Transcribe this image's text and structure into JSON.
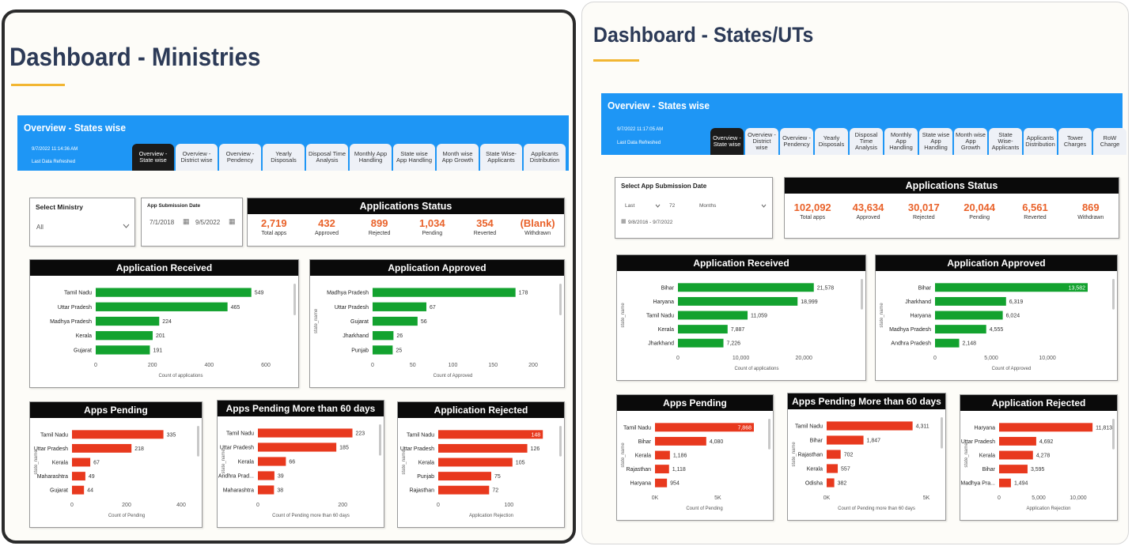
{
  "colors": {
    "green": "#13a22f",
    "red": "#e8391e",
    "banner": "#1e96f5",
    "title": "#2c3a57",
    "accent": "#f2b632",
    "stat": "#e9622a"
  },
  "ministries": {
    "title": "Dashboard - Ministries",
    "banner_title": "Overview - States wise",
    "refresh_time": "9/7/2022 11:14:36 AM",
    "refresh_label": "Last Data Refreshed",
    "tabs": [
      "Overview - State wise",
      "Overview - District wise",
      "Overview - Pendency",
      "Yearly Disposals",
      "Disposal Time Analysis",
      "Monthly App Handling",
      "State wise App Handling",
      "Month wise App Growth",
      "State Wise- Applicants",
      "Applicants Distribution"
    ],
    "ministry_filter": {
      "label": "Select Ministry",
      "value": "All"
    },
    "date_filter": {
      "label": "App Submission Date",
      "from": "7/1/2018",
      "to": "9/5/2022"
    },
    "status": {
      "title": "Applications Status",
      "items": [
        {
          "value": "2,719",
          "label": "Total apps"
        },
        {
          "value": "432",
          "label": "Approved"
        },
        {
          "value": "899",
          "label": "Rejected"
        },
        {
          "value": "1,034",
          "label": "Pending"
        },
        {
          "value": "354",
          "label": "Reverted"
        },
        {
          "value": "(Blank)",
          "label": "Withdrawn"
        }
      ]
    }
  },
  "states": {
    "title": "Dashboard - States/UTs",
    "banner_title": "Overview - States wise",
    "refresh_time": "9/7/2022 11:17:05 AM",
    "refresh_label": "Last Data Refreshed",
    "tabs": [
      "Overview - State wise",
      "Overview - District wise",
      "Overview - Pendency",
      "Yearly Disposals",
      "Disposal Time Analysis",
      "Monthly App Handling",
      "State wise App Handling",
      "Month wise App Growth",
      "State Wise- Applicants",
      "Applicants Distribution",
      "Tower Charges",
      "RoW Charge"
    ],
    "date_filter": {
      "label": "Select App Submission Date",
      "mode": "Last",
      "count": "72",
      "unit": "Months",
      "range": "9/8/2016 - 9/7/2022"
    },
    "status": {
      "title": "Applications Status",
      "items": [
        {
          "value": "102,092",
          "label": "Total apps"
        },
        {
          "value": "43,634",
          "label": "Approved"
        },
        {
          "value": "30,017",
          "label": "Rejected"
        },
        {
          "value": "20,044",
          "label": "Pending"
        },
        {
          "value": "6,561",
          "label": "Reverted"
        },
        {
          "value": "869",
          "label": "Withdrawn"
        }
      ]
    }
  },
  "chart_data": [
    {
      "id": "m-received",
      "type": "bar",
      "orientation": "horizontal",
      "title": "Application Received",
      "categories": [
        "Tamil Nadu",
        "Uttar Pradesh",
        "Madhya Pradesh",
        "Kerala",
        "Gujarat"
      ],
      "values": [
        549,
        465,
        224,
        201,
        191
      ],
      "xlabel": "Count of applications",
      "ylabel": "",
      "xlim": [
        0,
        600
      ],
      "ticks": [
        0,
        200,
        400,
        600
      ],
      "tick_labels": [
        "0",
        "200",
        "400",
        "600"
      ],
      "color": "green"
    },
    {
      "id": "m-approved",
      "type": "bar",
      "orientation": "horizontal",
      "title": "Application Approved",
      "categories": [
        "Madhya Pradesh",
        "Uttar Pradesh",
        "Gujarat",
        "Jharkhand",
        "Punjab"
      ],
      "values": [
        178,
        67,
        56,
        26,
        25
      ],
      "xlabel": "Count of Approved",
      "ylabel": "state_name",
      "xlim": [
        0,
        200
      ],
      "ticks": [
        0,
        50,
        100,
        150,
        200
      ],
      "tick_labels": [
        "0",
        "50",
        "100",
        "150",
        "200"
      ],
      "color": "green"
    },
    {
      "id": "m-pending",
      "type": "bar",
      "orientation": "horizontal",
      "title": "Apps Pending",
      "categories": [
        "Tamil Nadu",
        "Uttar Pradesh",
        "Kerala",
        "Maharashtra",
        "Gujarat"
      ],
      "values": [
        335,
        218,
        67,
        49,
        44
      ],
      "xlabel": "Count of Pending",
      "ylabel": "state_name",
      "xlim": [
        0,
        400
      ],
      "ticks": [
        0,
        200,
        400
      ],
      "tick_labels": [
        "0",
        "200",
        "400"
      ],
      "color": "red"
    },
    {
      "id": "m-pending60",
      "type": "bar",
      "orientation": "horizontal",
      "title": "Apps Pending More than 60 days",
      "categories": [
        "Tamil Nadu",
        "Uttar Pradesh",
        "Kerala",
        "Andhra Prad...",
        "Maharashtra"
      ],
      "values": [
        223,
        185,
        66,
        39,
        38
      ],
      "xlabel": "Count of Pending more than 60 days",
      "ylabel": "state_name",
      "xlim": [
        0,
        250
      ],
      "ticks": [
        0,
        200
      ],
      "tick_labels": [
        "0",
        "200"
      ],
      "color": "red"
    },
    {
      "id": "m-rejected",
      "type": "bar",
      "orientation": "horizontal",
      "title": "Application Rejected",
      "categories": [
        "Tamil Nadu",
        "Uttar Pradesh",
        "Kerala",
        "Punjab",
        "Rajasthan"
      ],
      "values": [
        148,
        126,
        105,
        75,
        72
      ],
      "xlabel": "Application Rejection",
      "ylabel": "state_name",
      "xlim": [
        0,
        150
      ],
      "ticks": [
        0,
        100
      ],
      "tick_labels": [
        "0",
        "100"
      ],
      "color": "red",
      "inside_label_index": 0
    },
    {
      "id": "s-received",
      "type": "bar",
      "orientation": "horizontal",
      "title": "Application Received",
      "categories": [
        "Bihar",
        "Haryana",
        "Tamil Nadu",
        "Kerala",
        "Jharkhand"
      ],
      "values": [
        21578,
        18999,
        11059,
        7887,
        7226
      ],
      "value_labels": [
        "21,578",
        "18,999",
        "11,059",
        "7,887",
        "7,226"
      ],
      "xlabel": "Count of applications",
      "ylabel": "state_name",
      "xlim": [
        0,
        25000
      ],
      "ticks": [
        0,
        10000,
        20000
      ],
      "tick_labels": [
        "0",
        "10,000",
        "20,000"
      ],
      "color": "green"
    },
    {
      "id": "s-approved",
      "type": "bar",
      "orientation": "horizontal",
      "title": "Application Approved",
      "categories": [
        "Bihar",
        "Jharkhand",
        "Haryana",
        "Madhya Pradesh",
        "Andhra Pradesh"
      ],
      "values": [
        13582,
        6319,
        6024,
        4555,
        2148
      ],
      "value_labels": [
        "13,582",
        "6,319",
        "6,024",
        "4,555",
        "2,148"
      ],
      "xlabel": "Count of Approved",
      "ylabel": "state_name",
      "xlim": [
        0,
        13582
      ],
      "ticks": [
        0,
        5000,
        10000
      ],
      "tick_labels": [
        "0",
        "5,000",
        "10,000"
      ],
      "color": "green",
      "inside_label_index": 0
    },
    {
      "id": "s-pending",
      "type": "bar",
      "orientation": "horizontal",
      "title": "Apps Pending",
      "categories": [
        "Tamil Nadu",
        "Bihar",
        "Kerala",
        "Rajasthan",
        "Haryana"
      ],
      "values": [
        7868,
        4080,
        1186,
        1118,
        954
      ],
      "value_labels": [
        "7,868",
        "4,080",
        "1,186",
        "1,118",
        "954"
      ],
      "xlabel": "Count of Pending",
      "ylabel": "state_name",
      "xlim": [
        0,
        7868
      ],
      "ticks": [
        0,
        5000
      ],
      "tick_labels": [
        "0K",
        "5K"
      ],
      "color": "red",
      "inside_label_index": 0
    },
    {
      "id": "s-pending60",
      "type": "bar",
      "orientation": "horizontal",
      "title": "Apps Pending More than 60 days",
      "categories": [
        "Tamil Nadu",
        "Bihar",
        "Rajasthan",
        "Kerala",
        "Odisha"
      ],
      "values": [
        4311,
        1847,
        702,
        557,
        382
      ],
      "value_labels": [
        "4,311",
        "1,847",
        "702",
        "557",
        "382"
      ],
      "xlabel": "Count of Pending more than 60 days",
      "ylabel": "state_name",
      "xlim": [
        0,
        5000
      ],
      "ticks": [
        0,
        5000
      ],
      "tick_labels": [
        "0K",
        "5K"
      ],
      "color": "red"
    },
    {
      "id": "s-rejected",
      "type": "bar",
      "orientation": "horizontal",
      "title": "Application Rejected",
      "categories": [
        "Haryana",
        "Uttar Pradesh",
        "Kerala",
        "Bihar",
        "Madhya Pra..."
      ],
      "values": [
        11813,
        4692,
        4278,
        3595,
        1494
      ],
      "value_labels": [
        "11,813",
        "4,692",
        "4,278",
        "3,595",
        "1,494"
      ],
      "xlabel": "Application Rejection",
      "ylabel": "state_name",
      "xlim": [
        0,
        12500
      ],
      "ticks": [
        0,
        5000,
        10000
      ],
      "tick_labels": [
        "0",
        "5,000",
        "10,000"
      ],
      "color": "red"
    }
  ]
}
